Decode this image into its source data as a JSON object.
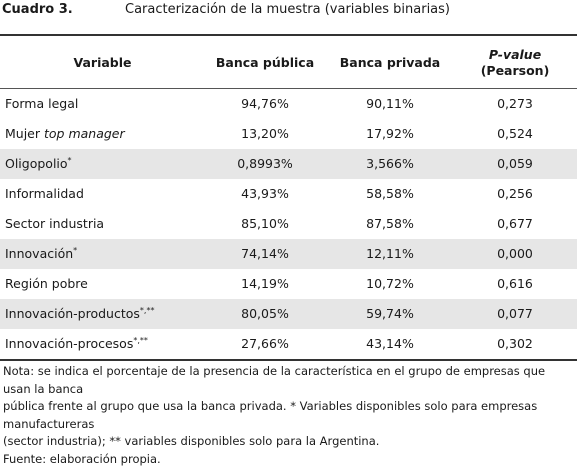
{
  "title": {
    "label": "Cuadro 3.",
    "text": "Caracterización de la muestra (variables binarias)"
  },
  "header": {
    "variable": "Variable",
    "banca_publica": "Banca pública",
    "banca_privada": "Banca privada",
    "pvalue_line1": "P-value",
    "pvalue_line2": "(Pearson)"
  },
  "rows": [
    {
      "label": "Forma legal",
      "label_italic": "",
      "sup": "",
      "publica": "94,76%",
      "privada": "90,11%",
      "pvalue": "0,273",
      "shaded": false
    },
    {
      "label": "Mujer ",
      "label_italic": "top manager",
      "sup": "",
      "publica": "13,20%",
      "privada": "17,92%",
      "pvalue": "0,524",
      "shaded": false
    },
    {
      "label": "Oligopolio",
      "label_italic": "",
      "sup": "*",
      "publica": "0,8993%",
      "privada": "3,566%",
      "pvalue": "0,059",
      "shaded": true
    },
    {
      "label": "Informalidad",
      "label_italic": "",
      "sup": "",
      "publica": "43,93%",
      "privada": "58,58%",
      "pvalue": "0,256",
      "shaded": false
    },
    {
      "label": "Sector industria",
      "label_italic": "",
      "sup": "",
      "publica": "85,10%",
      "privada": "87,58%",
      "pvalue": "0,677",
      "shaded": false
    },
    {
      "label": "Innovación",
      "label_italic": "",
      "sup": "*",
      "publica": "74,14%",
      "privada": "12,11%",
      "pvalue": "0,000",
      "shaded": true
    },
    {
      "label": "Región pobre",
      "label_italic": "",
      "sup": "",
      "publica": "14,19%",
      "privada": "10,72%",
      "pvalue": "0,616",
      "shaded": false
    },
    {
      "label": "Innovación-productos",
      "label_italic": "",
      "sup": "*,**",
      "publica": "80,05%",
      "privada": "59,74%",
      "pvalue": "0,077",
      "shaded": true
    },
    {
      "label": "Innovación-procesos",
      "label_italic": "",
      "sup": "*,**",
      "publica": "27,66%",
      "privada": "43,14%",
      "pvalue": "0,302",
      "shaded": false
    }
  ],
  "note": {
    "line1": "Nota: se indica el porcentaje de la presencia de la característica en el grupo de empresas que usan la banca",
    "line2": "pública frente al grupo que usa la banca privada. * Variables disponibles solo para empresas manufactureras",
    "line3": "(sector industria); ** variables disponibles solo para la Argentina.",
    "line4": "Fuente: elaboración propia."
  }
}
